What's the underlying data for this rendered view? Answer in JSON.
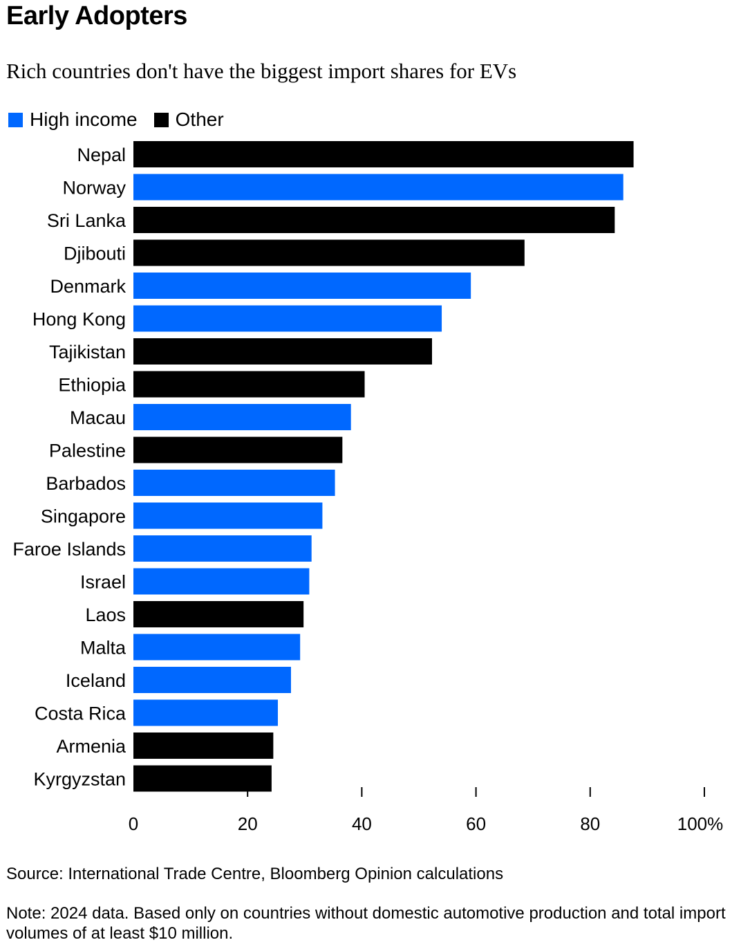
{
  "header": {
    "title": "Early Adopters",
    "subtitle": "Rich countries don't have the biggest import shares for EVs"
  },
  "legend": [
    {
      "label": "High income",
      "color": "#0068ff"
    },
    {
      "label": "Other",
      "color": "#000000"
    }
  ],
  "chart_data": {
    "type": "bar",
    "orientation": "horizontal",
    "categories": [
      "Nepal",
      "Norway",
      "Sri Lanka",
      "Djibouti",
      "Denmark",
      "Hong Kong",
      "Tajikistan",
      "Ethiopia",
      "Macau",
      "Palestine",
      "Barbados",
      "Singapore",
      "Faroe Islands",
      "Israel",
      "Laos",
      "Malta",
      "Iceland",
      "Costa Rica",
      "Armenia",
      "Kyrgyzstan"
    ],
    "values": [
      87.6,
      85.8,
      84.3,
      68.5,
      59.1,
      54.0,
      52.3,
      40.5,
      38.1,
      36.6,
      35.3,
      33.1,
      31.2,
      30.8,
      29.8,
      29.2,
      27.6,
      25.3,
      24.5,
      24.2
    ],
    "groups": [
      "Other",
      "High income",
      "Other",
      "Other",
      "High income",
      "High income",
      "Other",
      "Other",
      "High income",
      "Other",
      "High income",
      "High income",
      "High income",
      "High income",
      "Other",
      "High income",
      "High income",
      "High income",
      "Other",
      "Other"
    ],
    "group_colors": {
      "High income": "#0068ff",
      "Other": "#000000"
    },
    "xlim": [
      0,
      100
    ],
    "xticks": [
      0,
      20,
      40,
      60,
      80,
      100
    ],
    "xtick_labels": [
      "0",
      "20",
      "40",
      "60",
      "80",
      "100%"
    ]
  },
  "footer": {
    "source": "Source: International Trade Centre, Bloomberg Opinion calculations",
    "note": "Note: 2024 data. Based only on countries without domestic automotive production and total import volumes of at least $10 million."
  }
}
